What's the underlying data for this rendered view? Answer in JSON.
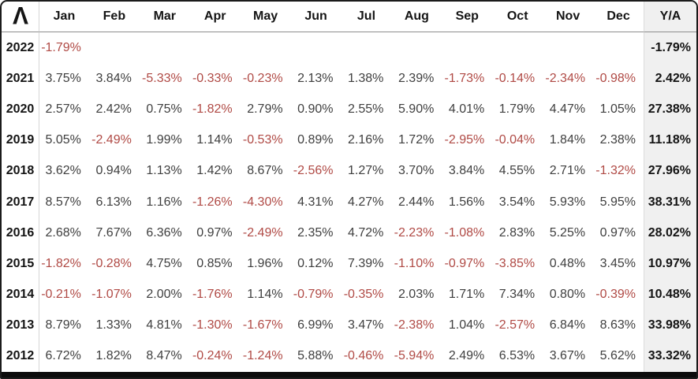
{
  "logo": {
    "glyph": "Λ"
  },
  "colors": {
    "negative_text": "#b04a45",
    "value_text": "#3f3f3f",
    "bold_text": "#141414",
    "total_column_bg": "#f0f0f0",
    "header_rule": "#8d8d8d",
    "column_divider": "#d6d6d6",
    "outer_border": "#1b1b1b",
    "bottom_bar": "#0b0b0b"
  },
  "chart_data": {
    "type": "table",
    "columns": [
      "Jan",
      "Feb",
      "Mar",
      "Apr",
      "May",
      "Jun",
      "Jul",
      "Aug",
      "Sep",
      "Oct",
      "Nov",
      "Dec"
    ],
    "total_column_label": "Y/A",
    "rows": [
      {
        "year": "2022",
        "monthly": [
          "-1.79%",
          "",
          "",
          "",
          "",
          "",
          "",
          "",
          "",
          "",
          "",
          ""
        ],
        "total": "-1.79%"
      },
      {
        "year": "2021",
        "monthly": [
          "3.75%",
          "3.84%",
          "-5.33%",
          "-0.33%",
          "-0.23%",
          "2.13%",
          "1.38%",
          "2.39%",
          "-1.73%",
          "-0.14%",
          "-2.34%",
          "-0.98%"
        ],
        "total": "2.42%"
      },
      {
        "year": "2020",
        "monthly": [
          "2.57%",
          "2.42%",
          "0.75%",
          "-1.82%",
          "2.79%",
          "0.90%",
          "2.55%",
          "5.90%",
          "4.01%",
          "1.79%",
          "4.47%",
          "1.05%"
        ],
        "total": "27.38%"
      },
      {
        "year": "2019",
        "monthly": [
          "5.05%",
          "-2.49%",
          "1.99%",
          "1.14%",
          "-0.53%",
          "0.89%",
          "2.16%",
          "1.72%",
          "-2.95%",
          "-0.04%",
          "1.84%",
          "2.38%"
        ],
        "total": "11.18%"
      },
      {
        "year": "2018",
        "monthly": [
          "3.62%",
          "0.94%",
          "1.13%",
          "1.42%",
          "8.67%",
          "-2.56%",
          "1.27%",
          "3.70%",
          "3.84%",
          "4.55%",
          "2.71%",
          "-1.32%"
        ],
        "total": "27.96%"
      },
      {
        "year": "2017",
        "monthly": [
          "8.57%",
          "6.13%",
          "1.16%",
          "-1.26%",
          "-4.30%",
          "4.31%",
          "4.27%",
          "2.44%",
          "1.56%",
          "3.54%",
          "5.93%",
          "5.95%"
        ],
        "total": "38.31%"
      },
      {
        "year": "2016",
        "monthly": [
          "2.68%",
          "7.67%",
          "6.36%",
          "0.97%",
          "-2.49%",
          "2.35%",
          "4.72%",
          "-2.23%",
          "-1.08%",
          "2.83%",
          "5.25%",
          "0.97%"
        ],
        "total": "28.02%"
      },
      {
        "year": "2015",
        "monthly": [
          "-1.82%",
          "-0.28%",
          "4.75%",
          "0.85%",
          "1.96%",
          "0.12%",
          "7.39%",
          "-1.10%",
          "-0.97%",
          "-3.85%",
          "0.48%",
          "3.45%"
        ],
        "total": "10.97%"
      },
      {
        "year": "2014",
        "monthly": [
          "-0.21%",
          "-1.07%",
          "2.00%",
          "-1.76%",
          "1.14%",
          "-0.79%",
          "-0.35%",
          "2.03%",
          "1.71%",
          "7.34%",
          "0.80%",
          "-0.39%"
        ],
        "total": "10.48%"
      },
      {
        "year": "2013",
        "monthly": [
          "8.79%",
          "1.33%",
          "4.81%",
          "-1.30%",
          "-1.67%",
          "6.99%",
          "3.47%",
          "-2.38%",
          "1.04%",
          "-2.57%",
          "6.84%",
          "8.63%"
        ],
        "total": "33.98%"
      },
      {
        "year": "2012",
        "monthly": [
          "6.72%",
          "1.82%",
          "8.47%",
          "-0.24%",
          "-1.24%",
          "5.88%",
          "-0.46%",
          "-5.94%",
          "2.49%",
          "6.53%",
          "3.67%",
          "5.62%"
        ],
        "total": "33.32%"
      }
    ],
    "style_note": "negative monthly values rendered in red; Y/A totals always bold black"
  }
}
